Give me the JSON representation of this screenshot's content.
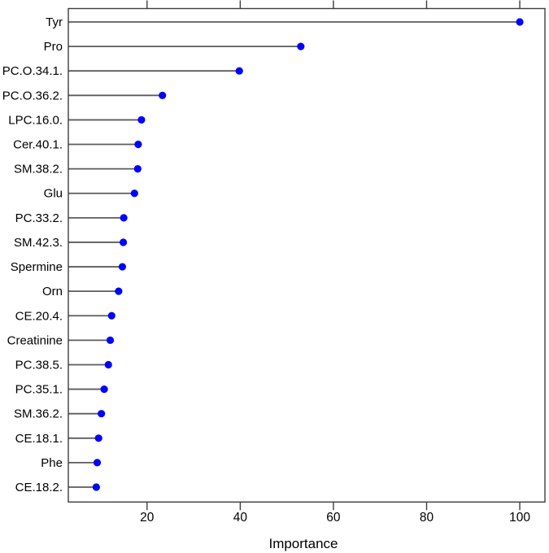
{
  "chart_data": {
    "type": "scatter",
    "variant": "lollipop-importance-plot",
    "title": "",
    "xlabel": "Importance",
    "ylabel": "",
    "categories": [
      "Tyr",
      "Pro",
      "PC.O.34.1.",
      "PC.O.36.2.",
      "LPC.16.0.",
      "Cer.40.1.",
      "SM.38.2.",
      "Glu",
      "PC.33.2.",
      "SM.42.3.",
      "Spermine",
      "Orn",
      "CE.20.4.",
      "Creatinine",
      "PC.38.5.",
      "PC.35.1.",
      "SM.36.2.",
      "CE.18.1.",
      "Phe",
      "CE.18.2."
    ],
    "values": [
      100,
      53,
      39.8,
      23.3,
      18.8,
      18.1,
      18.0,
      17.3,
      15.0,
      14.9,
      14.7,
      13.9,
      12.4,
      12.1,
      11.7,
      10.8,
      10.2,
      9.6,
      9.3,
      9.1
    ],
    "x_ticks": [
      20,
      40,
      60,
      80,
      100
    ],
    "x_tick_labels": [
      "20",
      "40",
      "60",
      "80",
      "100"
    ],
    "xlim": [
      3.1,
      105.4
    ],
    "grid": false,
    "legend_position": "none",
    "top_axis_mirrored_ticks": true,
    "point_color": "#0000ff",
    "segment_color": "#5c5c5c",
    "axis_color": "#3d3d3d",
    "text_color": "#000000",
    "background_color": "#ffffff"
  }
}
